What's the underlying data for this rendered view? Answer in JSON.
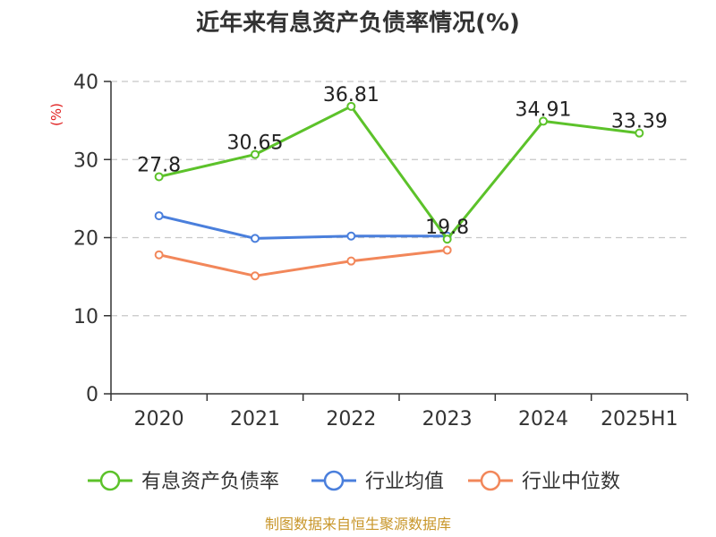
{
  "chart_data": {
    "type": "line",
    "title": "近年来有息资产负债率情况(%)",
    "ylabel": "(%)",
    "xlabel": "",
    "categories": [
      "2020",
      "2021",
      "2022",
      "2023",
      "2024",
      "2025H1"
    ],
    "ylim": [
      0,
      40
    ],
    "yticks": [
      0,
      10,
      20,
      30,
      40
    ],
    "grid": true,
    "legend_position": "bottom",
    "series": [
      {
        "name": "有息资产负债率",
        "color": "#5cc22a",
        "values": [
          27.8,
          30.65,
          36.81,
          19.8,
          34.91,
          33.39
        ],
        "labels": [
          "27.8",
          "30.65",
          "36.81",
          "19.8",
          "34.91",
          "33.39"
        ]
      },
      {
        "name": "行业均值",
        "color": "#4a7fdc",
        "values": [
          22.8,
          19.9,
          20.2,
          20.2,
          null,
          null
        ]
      },
      {
        "name": "行业中位数",
        "color": "#f2875a",
        "values": [
          17.8,
          15.1,
          17.0,
          18.4,
          null,
          null
        ]
      }
    ],
    "source": "制图数据来自恒生聚源数据库"
  }
}
